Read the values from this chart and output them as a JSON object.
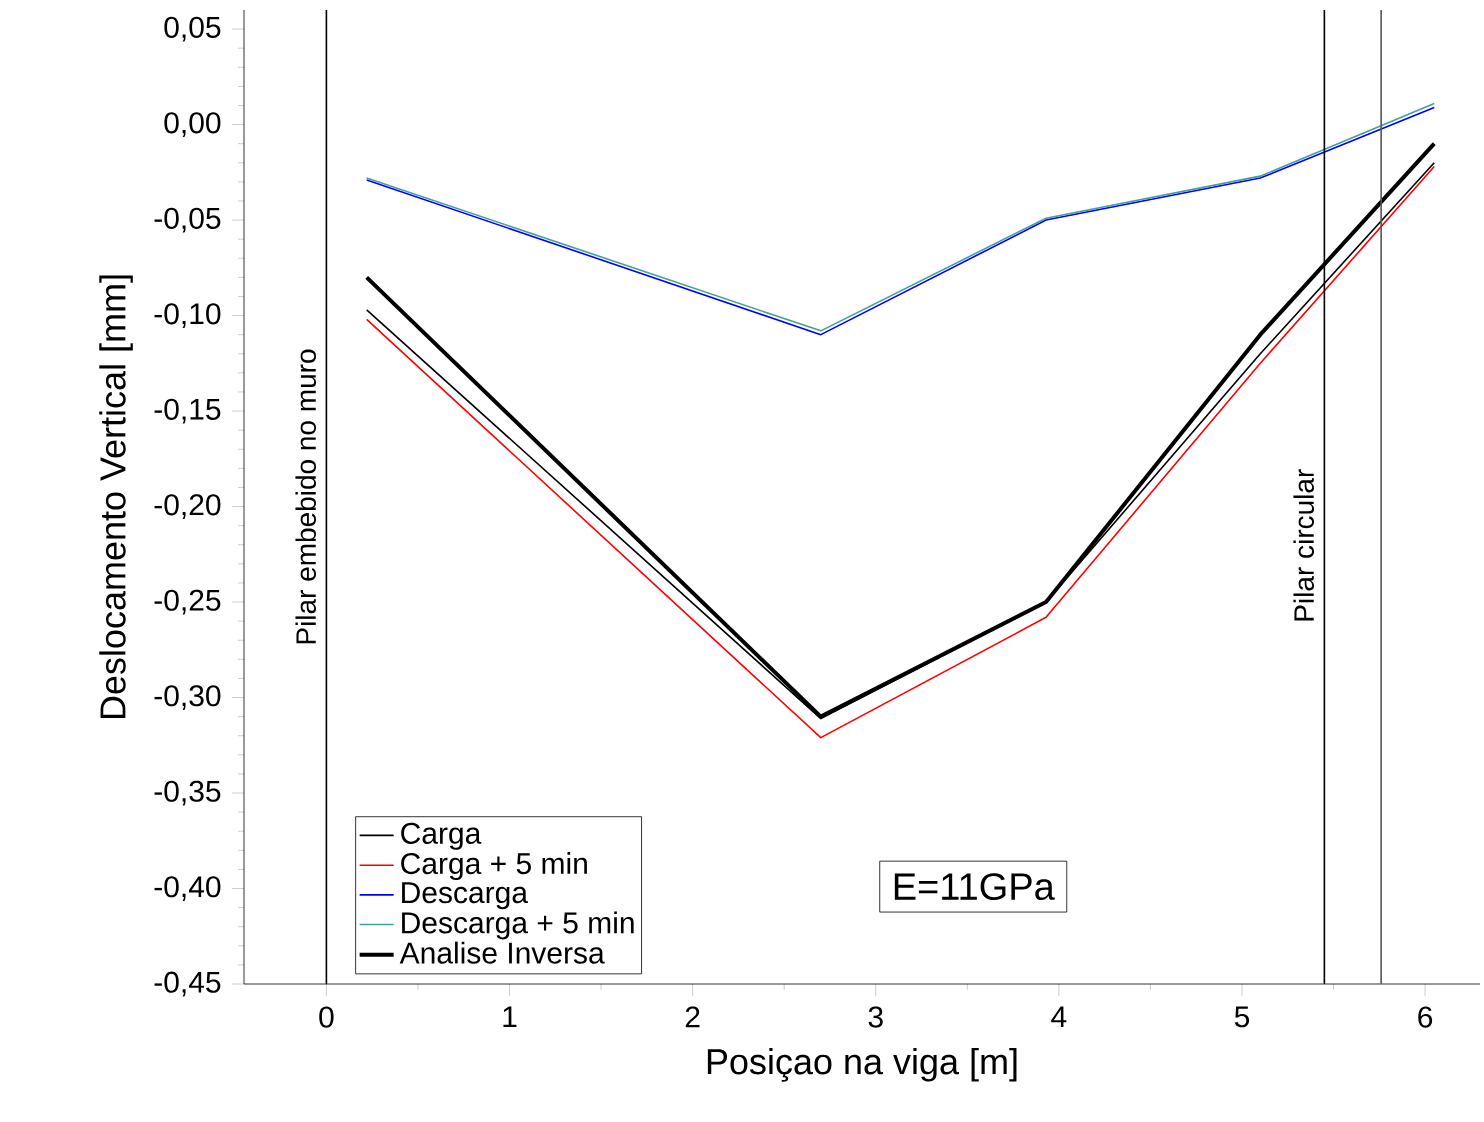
{
  "chart_data": {
    "type": "line",
    "xlabel": "Posiçao na viga [m]",
    "ylabel": "Deslocamento Vertical [mm]",
    "x": [
      0.22,
      2.7,
      3.93,
      5.1,
      6.05
    ],
    "series": [
      {
        "name": "Carga",
        "color": "#000000",
        "values": [
          -0.097,
          -0.311,
          -0.25,
          -0.12,
          -0.02
        ]
      },
      {
        "name": "Carga + 5 min",
        "color": "#ff0000",
        "values": [
          -0.102,
          -0.321,
          -0.258,
          -0.125,
          -0.022
        ]
      },
      {
        "name": "Descarga",
        "color": "#0000ff",
        "values": [
          -0.029,
          -0.11,
          -0.05,
          -0.028,
          0.009
        ]
      },
      {
        "name": "Descarga + 5 min",
        "color": "#40a0a0",
        "values": [
          -0.028,
          -0.108,
          -0.049,
          -0.027,
          0.011
        ]
      },
      {
        "name": "Analise Inversa",
        "color": "#000000",
        "values": [
          -0.08,
          -0.31,
          -0.25,
          -0.11,
          -0.01
        ]
      }
    ],
    "xlim": [
      -0.45,
      6.3
    ],
    "ylim": [
      -0.45,
      0.06
    ],
    "xticks": [
      0,
      1,
      2,
      3,
      4,
      5,
      6
    ],
    "yticks": [
      {
        "value": -0.45,
        "label": "-0,45"
      },
      {
        "value": -0.4,
        "label": "-0,40"
      },
      {
        "value": -0.35,
        "label": "-0,35"
      },
      {
        "value": -0.3,
        "label": "-0,30"
      },
      {
        "value": -0.25,
        "label": "-0,25"
      },
      {
        "value": -0.2,
        "label": "-0,20"
      },
      {
        "value": -0.15,
        "label": "-0,15"
      },
      {
        "value": -0.1,
        "label": "-0,10"
      },
      {
        "value": -0.05,
        "label": "-0,05"
      },
      {
        "value": 0,
        "label": "0,00"
      },
      {
        "value": 0.05,
        "label": "0,05"
      }
    ],
    "ref_lines": [
      {
        "axis": "x",
        "value": 0,
        "label": "Pilar embebido no muro",
        "color": "#000000"
      },
      {
        "axis": "x",
        "value": 5.45,
        "label": "Pilar circular",
        "color": "#000000"
      },
      {
        "axis": "x",
        "value": 5.76,
        "color": "#555555"
      }
    ],
    "annotations": [
      "E=11GPa"
    ],
    "legend": "bottom left",
    "grid": false,
    "marker": "none",
    "line_style": "solid"
  }
}
